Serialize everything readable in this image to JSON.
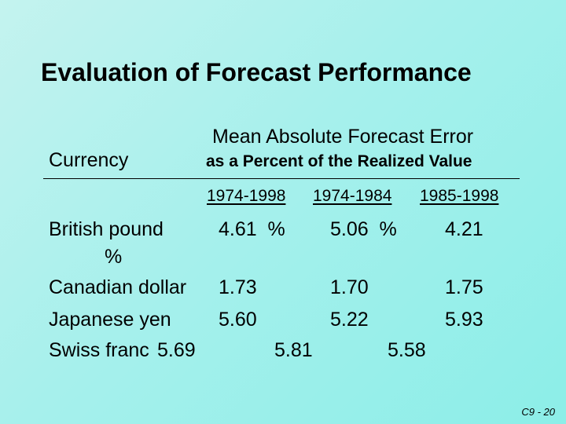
{
  "title": "Evaluation of Forecast Performance",
  "header": {
    "main": "Mean Absolute Forecast Error",
    "sub": "as a Percent of the Realized Value",
    "currency": "Currency"
  },
  "periods": [
    "1974-1998",
    "1974-1984",
    "1985-1998"
  ],
  "rows": [
    {
      "name": "British pound",
      "v1": "4.61  %",
      "v2": "5.06  %",
      "v3": "4.21",
      "extra": "%"
    },
    {
      "name": "Canadian dollar",
      "v1": "1.73",
      "v2": "1.70",
      "v3": "1.75"
    },
    {
      "name": "Japanese yen",
      "v1": "5.60",
      "v2": "5.22",
      "v3": "5.93"
    },
    {
      "name": "Swiss franc",
      "v1": "5.69",
      "v2": "5.81",
      "v3": "5.58"
    }
  ],
  "footer": "C9 - 20"
}
